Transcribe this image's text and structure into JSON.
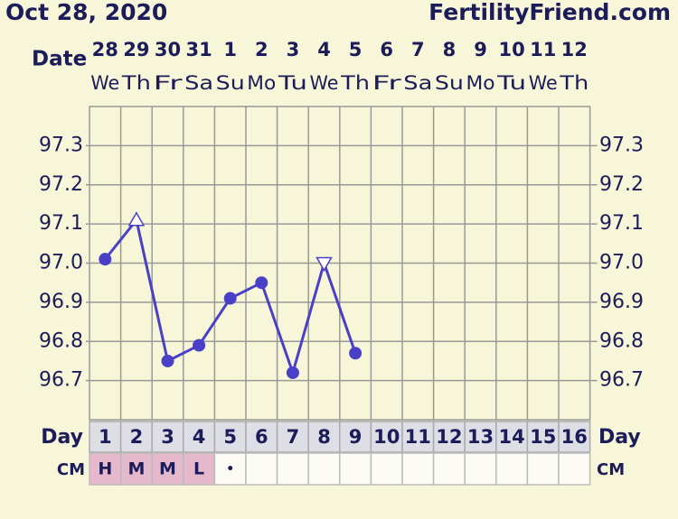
{
  "chart_data": {
    "type": "line",
    "title": "Oct 28, 2020",
    "site": "FertilityFriend.com",
    "date_label": "Date",
    "dates": [
      28,
      29,
      30,
      31,
      1,
      2,
      3,
      4,
      5,
      6,
      7,
      8,
      9,
      10,
      11,
      12
    ],
    "weekdays": [
      "We",
      "Th",
      "Fr",
      "Sa",
      "Su",
      "Mo",
      "Tu",
      "We",
      "Th",
      "Fr",
      "Sa",
      "Su",
      "Mo",
      "Tu",
      "We",
      "Th"
    ],
    "day_label": "Day",
    "categories": [
      1,
      2,
      3,
      4,
      5,
      6,
      7,
      8,
      9,
      10,
      11,
      12,
      13,
      14,
      15,
      16
    ],
    "values": [
      97.01,
      97.11,
      96.75,
      96.79,
      96.91,
      96.95,
      96.72,
      97.0,
      96.77,
      null,
      null,
      null,
      null,
      null,
      null,
      null
    ],
    "markers": [
      "circle",
      "triangle-up",
      "circle",
      "circle",
      "circle",
      "circle",
      "circle",
      "triangle-down",
      "circle",
      null,
      null,
      null,
      null,
      null,
      null,
      null
    ],
    "color": "#4a40c8",
    "ylim": [
      96.6,
      97.4
    ],
    "yticks": [
      {
        "value": 96.7,
        "label": "96.7"
      },
      {
        "value": 96.8,
        "label": "96.8"
      },
      {
        "value": 96.9,
        "label": "96.9"
      },
      {
        "value": 97.0,
        "label": "97.0"
      },
      {
        "value": 97.1,
        "label": "97.1"
      },
      {
        "value": 97.2,
        "label": "97.2"
      },
      {
        "value": 97.3,
        "label": "97.3"
      }
    ],
    "grid": true,
    "cm_label": "CM",
    "cm": [
      "H",
      "M",
      "M",
      "L",
      "•",
      null,
      null,
      null,
      null,
      null,
      null,
      null,
      null,
      null,
      null,
      null
    ],
    "cm_color": "#e6b8cc"
  }
}
